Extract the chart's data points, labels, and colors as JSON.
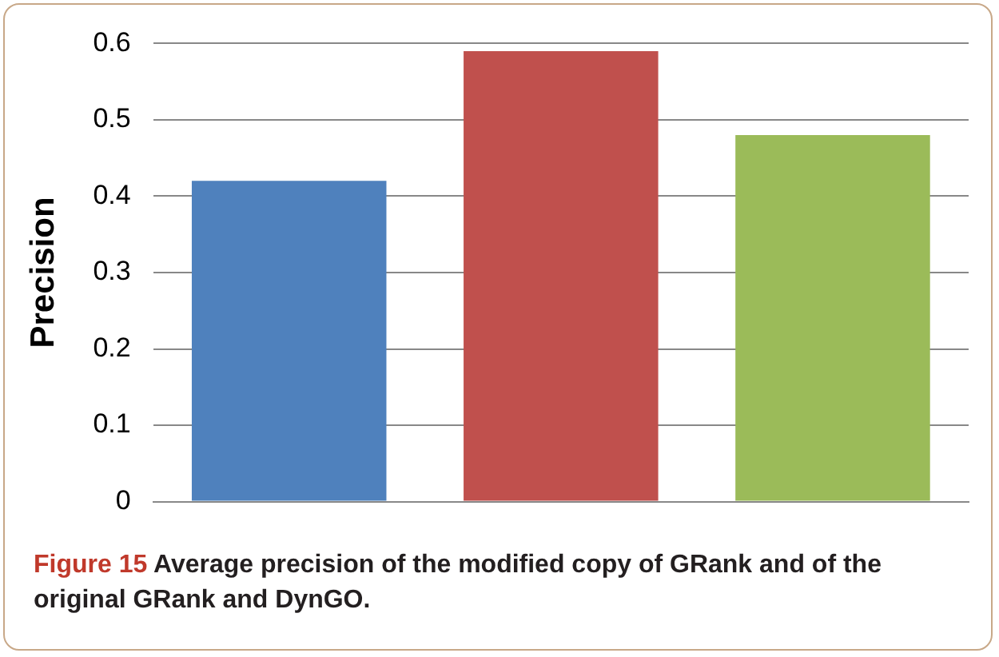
{
  "chart_data": {
    "type": "bar",
    "ylabel": "Precision",
    "categories": [
      null,
      null,
      null
    ],
    "values": [
      0.42,
      0.59,
      0.48
    ],
    "colors": [
      "#4f81bd",
      "#c0504d",
      "#9bbb59"
    ],
    "ylim": [
      0,
      0.6
    ],
    "yticks": [
      0,
      0.1,
      0.2,
      0.3,
      0.4,
      0.5,
      0.6
    ],
    "grid": "y",
    "annotations": [
      "Figure 15",
      "Average precision of the modified copy of GRank and of the original GRank and DynGO."
    ]
  }
}
